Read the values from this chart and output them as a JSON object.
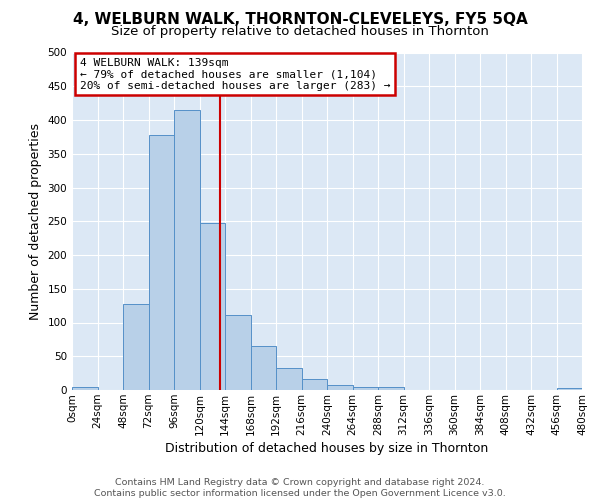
{
  "title": "4, WELBURN WALK, THORNTON-CLEVELEYS, FY5 5QA",
  "subtitle": "Size of property relative to detached houses in Thornton",
  "xlabel": "Distribution of detached houses by size in Thornton",
  "ylabel": "Number of detached properties",
  "bin_edges": [
    0,
    24,
    48,
    72,
    96,
    120,
    144,
    168,
    192,
    216,
    240,
    264,
    288,
    312,
    336,
    360,
    384,
    408,
    432,
    456,
    480
  ],
  "bar_heights": [
    4,
    0,
    128,
    378,
    415,
    247,
    111,
    65,
    32,
    16,
    8,
    5,
    4,
    0,
    0,
    0,
    0,
    0,
    0,
    3
  ],
  "bar_color": "#b8d0e8",
  "bar_edge_color": "#5590c8",
  "vline_x": 139,
  "vline_color": "#cc0000",
  "annotation_text": "4 WELBURN WALK: 139sqm\n← 79% of detached houses are smaller (1,104)\n20% of semi-detached houses are larger (283) →",
  "annotation_box_color": "#ffffff",
  "annotation_box_edge_color": "#cc0000",
  "ylim": [
    0,
    500
  ],
  "yticks": [
    0,
    50,
    100,
    150,
    200,
    250,
    300,
    350,
    400,
    450,
    500
  ],
  "tick_labels": [
    "0sqm",
    "24sqm",
    "48sqm",
    "72sqm",
    "96sqm",
    "120sqm",
    "144sqm",
    "168sqm",
    "192sqm",
    "216sqm",
    "240sqm",
    "264sqm",
    "288sqm",
    "312sqm",
    "336sqm",
    "360sqm",
    "384sqm",
    "408sqm",
    "432sqm",
    "456sqm",
    "480sqm"
  ],
  "footer_text": "Contains HM Land Registry data © Crown copyright and database right 2024.\nContains public sector information licensed under the Open Government Licence v3.0.",
  "fig_bg_color": "#ffffff",
  "plot_bg_color": "#dce8f5",
  "grid_color": "#ffffff",
  "title_fontsize": 11,
  "subtitle_fontsize": 9.5,
  "axis_label_fontsize": 9,
  "tick_fontsize": 7.5,
  "footer_fontsize": 6.8
}
